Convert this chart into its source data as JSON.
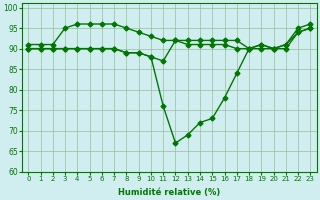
{
  "xlabel": "Humidité relative (%)",
  "background_color": "#d0eef0",
  "grid_color": "#99bb99",
  "line_color": "#007700",
  "marker": "D",
  "markersize": 2.5,
  "linewidth": 1.0,
  "ylim": [
    60,
    101
  ],
  "yticks": [
    60,
    65,
    70,
    75,
    80,
    85,
    90,
    95,
    100
  ],
  "xticks": [
    0,
    1,
    2,
    3,
    4,
    5,
    6,
    7,
    8,
    9,
    10,
    11,
    12,
    13,
    14,
    15,
    16,
    17,
    18,
    19,
    20,
    21,
    22,
    23
  ],
  "series": [
    [
      90,
      90,
      90,
      90,
      90,
      90,
      90,
      90,
      89,
      89,
      88,
      87,
      92,
      92,
      92,
      92,
      92,
      92,
      90,
      91,
      90,
      91,
      95,
      96
    ],
    [
      91,
      91,
      91,
      95,
      96,
      96,
      96,
      96,
      95,
      94,
      93,
      92,
      92,
      91,
      91,
      91,
      91,
      90,
      90,
      90,
      90,
      90,
      94,
      95
    ],
    [
      90,
      90,
      90,
      90,
      90,
      90,
      90,
      90,
      89,
      89,
      88,
      76,
      67,
      69,
      72,
      73,
      78,
      84,
      90,
      91,
      90,
      91,
      94,
      95
    ]
  ]
}
